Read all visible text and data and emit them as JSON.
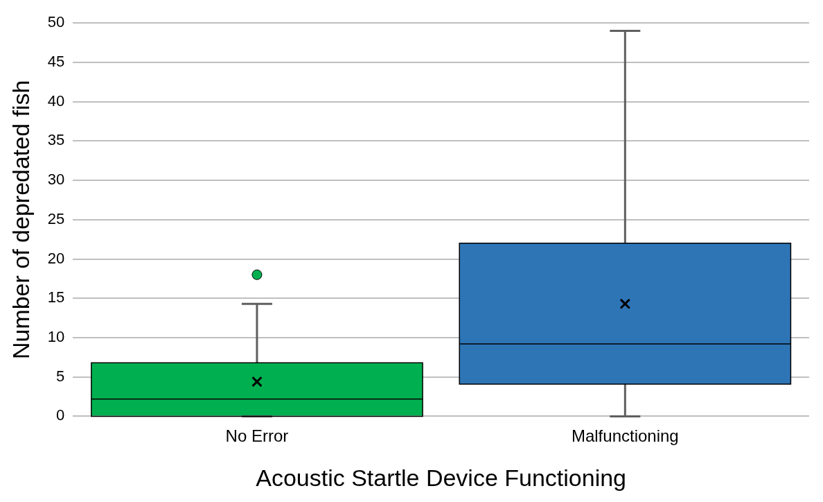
{
  "chart_data": {
    "type": "box",
    "xlabel": "Acoustic Startle Device Functioning",
    "ylabel": "Number of depredated fish",
    "categories": [
      "No Error",
      "Malfunctioning"
    ],
    "colors": [
      "#00b050",
      "#2e75b6"
    ],
    "boxes": [
      {
        "low": 0,
        "q1": 0,
        "median": 2.2,
        "q3": 6.8,
        "high": 14.3,
        "mean": 4.4,
        "outliers": [
          18
        ]
      },
      {
        "low": 0,
        "q1": 4.1,
        "median": 9.2,
        "q3": 22,
        "high": 49,
        "mean": 14.3
      }
    ],
    "ylim": [
      0,
      50
    ],
    "yticks": [
      0,
      5,
      10,
      15,
      20,
      25,
      30,
      35,
      40,
      45,
      50
    ],
    "grid": "y",
    "legend": false
  }
}
